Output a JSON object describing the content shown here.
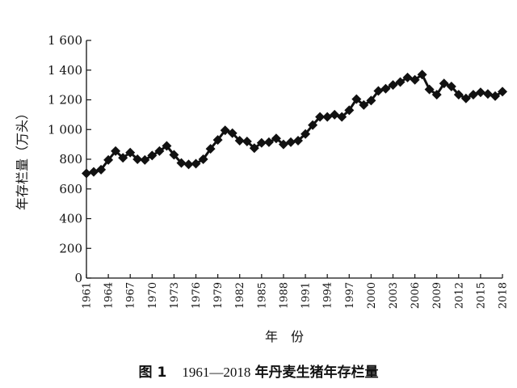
{
  "chart_data": {
    "type": "line",
    "x": [
      1961,
      1962,
      1963,
      1964,
      1965,
      1966,
      1967,
      1968,
      1969,
      1970,
      1971,
      1972,
      1973,
      1974,
      1975,
      1976,
      1977,
      1978,
      1979,
      1980,
      1981,
      1982,
      1983,
      1984,
      1985,
      1986,
      1987,
      1988,
      1989,
      1990,
      1991,
      1992,
      1993,
      1994,
      1995,
      1996,
      1997,
      1998,
      1999,
      2000,
      2001,
      2002,
      2003,
      2004,
      2005,
      2006,
      2007,
      2008,
      2009,
      2010,
      2011,
      2012,
      2013,
      2014,
      2015,
      2016,
      2017,
      2018
    ],
    "series": [
      {
        "values": [
          705,
          715,
          730,
          795,
          855,
          810,
          845,
          800,
          795,
          825,
          855,
          890,
          830,
          775,
          765,
          770,
          800,
          870,
          930,
          995,
          975,
          925,
          920,
          875,
          910,
          915,
          940,
          900,
          915,
          925,
          970,
          1030,
          1085,
          1085,
          1100,
          1085,
          1130,
          1205,
          1165,
          1195,
          1260,
          1275,
          1300,
          1320,
          1350,
          1335,
          1370,
          1270,
          1235,
          1310,
          1290,
          1235,
          1210,
          1235,
          1250,
          1240,
          1225,
          1255
        ],
        "color": "#111111",
        "marker": "diamond"
      }
    ],
    "yticks": [
      "0",
      "200",
      "400",
      "600",
      "800",
      "1 000",
      "1 200",
      "1 400",
      "1 600"
    ],
    "ytick_values": [
      0,
      200,
      400,
      600,
      800,
      1000,
      1200,
      1400,
      1600
    ],
    "xticks": [
      "1961",
      "1964",
      "1967",
      "1970",
      "1973",
      "1976",
      "1979",
      "1982",
      "1985",
      "1988",
      "1991",
      "1994",
      "1997",
      "2000",
      "2003",
      "2006",
      "2009",
      "2012",
      "2015",
      "2018"
    ],
    "xtick_values": [
      1961,
      1964,
      1967,
      1970,
      1973,
      1976,
      1979,
      1982,
      1985,
      1988,
      1991,
      1994,
      1997,
      2000,
      2003,
      2006,
      2009,
      2012,
      2015,
      2018
    ],
    "ylim": [
      0,
      1600
    ],
    "xlim": [
      1961,
      2018
    ],
    "xlabel": "年　份",
    "ylabel": "年存栏量（万头）",
    "caption_prefix": "图 1",
    "caption_years": "1961—2018",
    "caption_text": "年丹麦生猪年存栏量",
    "grid": false,
    "legend": "none"
  }
}
